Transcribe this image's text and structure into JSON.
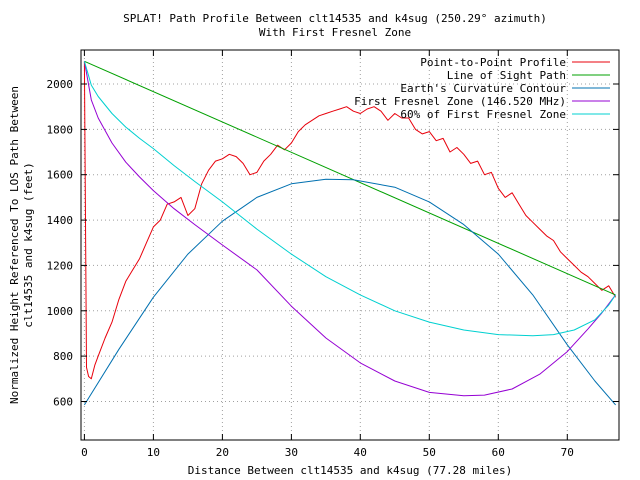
{
  "chart_data": {
    "type": "line",
    "title": "SPLAT! Path Profile Between clt14535 and k4sug (250.29° azimuth)",
    "subtitle": "With First Fresnel Zone",
    "xlabel": "Distance Between clt14535 and k4sug (77.28 miles)",
    "ylabel_line1": "Normalized Height Referenced To LOS Path Between",
    "ylabel_line2": "clt14535 and k4sug (feet)",
    "xlim": [
      -0.5,
      77.5
    ],
    "ylim": [
      430,
      2150
    ],
    "x_ticks": [
      0,
      10,
      20,
      30,
      40,
      50,
      60,
      70
    ],
    "y_ticks": [
      600,
      800,
      1000,
      1200,
      1400,
      1600,
      1800,
      2000
    ],
    "grid": true,
    "legend_position": "top-right",
    "series": [
      {
        "name": "Point-to-Point Profile",
        "color": "#e8000b",
        "x": [
          0,
          0.3,
          0.6,
          1,
          1.5,
          2,
          3,
          4,
          5,
          6,
          7,
          8,
          9,
          10,
          11,
          12,
          13,
          14,
          15,
          16,
          17,
          18,
          19,
          20,
          21,
          22,
          23,
          24,
          25,
          26,
          27,
          28,
          29,
          30,
          31,
          32,
          33,
          34,
          35,
          36,
          37,
          38,
          39,
          40,
          41,
          42,
          43,
          44,
          45,
          46,
          47,
          48,
          49,
          50,
          51,
          52,
          53,
          54,
          55,
          56,
          57,
          58,
          59,
          60,
          61,
          62,
          63,
          64,
          65,
          66,
          67,
          68,
          69,
          70,
          71,
          72,
          73,
          74,
          75,
          76,
          77
        ],
        "y": [
          2100,
          750,
          710,
          700,
          760,
          800,
          880,
          950,
          1050,
          1130,
          1180,
          1230,
          1300,
          1370,
          1400,
          1470,
          1480,
          1500,
          1420,
          1450,
          1560,
          1620,
          1660,
          1670,
          1690,
          1680,
          1650,
          1600,
          1610,
          1660,
          1690,
          1730,
          1710,
          1740,
          1790,
          1820,
          1840,
          1860,
          1870,
          1880,
          1890,
          1900,
          1880,
          1870,
          1890,
          1900,
          1880,
          1840,
          1870,
          1850,
          1850,
          1800,
          1780,
          1790,
          1750,
          1760,
          1700,
          1720,
          1690,
          1650,
          1660,
          1600,
          1610,
          1540,
          1500,
          1520,
          1470,
          1420,
          1390,
          1360,
          1330,
          1310,
          1260,
          1230,
          1200,
          1170,
          1150,
          1120,
          1090,
          1110,
          1060
        ]
      },
      {
        "name": "Line of Sight Path",
        "color": "#00a000",
        "x": [
          0,
          77
        ],
        "y": [
          2100,
          1070
        ]
      },
      {
        "name": "Earth's Curvature Contour",
        "color": "#0070b0",
        "x": [
          0,
          5,
          10,
          15,
          20,
          25,
          30,
          35,
          39,
          45,
          50,
          55,
          60,
          65,
          70,
          74,
          77
        ],
        "y": [
          585,
          830,
          1060,
          1250,
          1395,
          1500,
          1560,
          1580,
          1578,
          1545,
          1480,
          1380,
          1250,
          1070,
          850,
          690,
          585
        ]
      },
      {
        "name": "First Fresnel Zone (146.520 MHz)",
        "color": "#9500d3",
        "x": [
          0,
          1,
          2,
          4,
          6,
          8,
          10,
          13,
          16,
          20,
          25,
          30,
          35,
          40,
          45,
          50,
          55,
          58,
          62,
          66,
          70,
          73,
          75,
          76.5,
          77
        ],
        "y": [
          2100,
          1930,
          1850,
          1740,
          1655,
          1590,
          1530,
          1450,
          1380,
          1290,
          1180,
          1020,
          880,
          770,
          690,
          640,
          625,
          628,
          655,
          720,
          820,
          920,
          990,
          1050,
          1070
        ]
      },
      {
        "name": "60% of First Fresnel Zone",
        "color": "#00d0d0",
        "x": [
          0,
          1,
          2,
          4,
          6,
          8,
          10,
          13,
          16,
          20,
          25,
          30,
          35,
          40,
          45,
          50,
          55,
          60,
          65,
          68,
          71,
          74,
          76,
          77
        ],
        "y": [
          2100,
          1995,
          1945,
          1870,
          1810,
          1760,
          1715,
          1640,
          1570,
          1480,
          1360,
          1250,
          1150,
          1070,
          1000,
          950,
          915,
          895,
          890,
          895,
          915,
          960,
          1025,
          1070
        ]
      }
    ]
  }
}
